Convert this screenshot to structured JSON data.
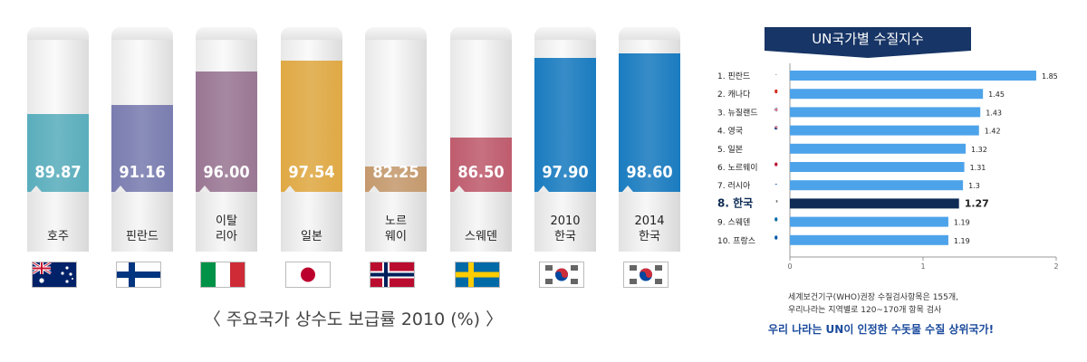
{
  "chart_data": [
    {
      "type": "bar",
      "title": "〈 주요국가 상수도 보급률 2010 (%) 〉",
      "categories": [
        "호주",
        "핀란드",
        "이탈\n리아",
        "일본",
        "노르\n웨이",
        "스웨덴",
        "2010\n한국",
        "2014\n한국"
      ],
      "values": [
        89.87,
        91.16,
        96.0,
        97.54,
        82.25,
        86.5,
        97.9,
        98.6
      ],
      "value_labels": [
        "89.87",
        "91.16",
        "96.00",
        "97.54",
        "82.25",
        "86.50",
        "97.90",
        "98.60"
      ],
      "colors": [
        "#5aaebd",
        "#7a7db0",
        "#9a7794",
        "#e0a944",
        "#c59a6e",
        "#bf5c6e",
        "#1a7cc0",
        "#1a7cc0"
      ],
      "flags": [
        "australia",
        "finland",
        "italy",
        "japan",
        "norway",
        "sweden",
        "korea",
        "korea"
      ]
    },
    {
      "type": "bar",
      "orientation": "horizontal",
      "title": "UN국가별 수질지수",
      "categories": [
        "1.  핀란드",
        "2.  캐나다",
        "3.  뉴질랜드",
        "4.  영국",
        "5.  일본",
        "6.  노르웨이",
        "7.  러시아",
        "8.  한국",
        "9.  스웨덴",
        "10.  프랑스"
      ],
      "values": [
        1.85,
        1.45,
        1.43,
        1.42,
        1.32,
        1.31,
        1.3,
        1.27,
        1.19,
        1.19
      ],
      "value_labels": [
        "1.85",
        "1.45",
        "1.43",
        "1.42",
        "1.32",
        "1.31",
        "1.3",
        "1.27",
        "1.19",
        "1.19"
      ],
      "highlight_index": 7,
      "bar_color": "#4da3ea",
      "highlight_color": "#0e2c55",
      "flags": [
        "finland",
        "canada",
        "newzealand",
        "uk",
        "japan",
        "norway",
        "russia",
        "korea",
        "sweden",
        "france"
      ],
      "xlim": [
        0,
        2
      ],
      "xticks": [
        "0",
        "1",
        "2"
      ]
    }
  ],
  "footnote": "세계보건기구(WHO)권장 수질검사항목은 155개,\n우리나라는 지역별로 120~170개 항목 검사",
  "conclusion": "우리 나라는 UN이 인정한 수돗물 수질 상위국가!"
}
